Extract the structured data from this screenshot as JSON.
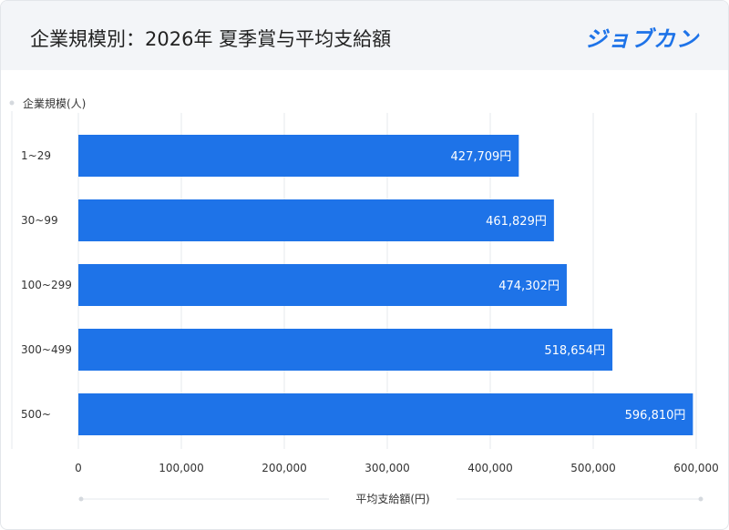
{
  "header": {
    "title": "企業規模別：2026年 夏季賞与平均支給額",
    "logo": "ジョブカン"
  },
  "colors": {
    "bar": "#1e73e8",
    "grid": "#e6e9ed",
    "header_bg": "#f3f5f8",
    "logo": "#1e73e8"
  },
  "chart_data": {
    "type": "bar",
    "orientation": "horizontal",
    "ylabel": "企業規模(人)",
    "xlabel": "平均支給額(円)",
    "categories": [
      "1~29",
      "30~99",
      "100~299",
      "300~499",
      "500~"
    ],
    "values": [
      427709,
      461829,
      474302,
      518654,
      596810
    ],
    "data_labels": [
      "427,709円",
      "461,829円",
      "474,302円",
      "518,654円",
      "596,810円"
    ],
    "xlim": [
      0,
      600000
    ],
    "xticks": [
      0,
      100000,
      200000,
      300000,
      400000,
      500000,
      600000
    ],
    "xtick_labels": [
      "0",
      "100,000",
      "200,000",
      "300,000",
      "400,000",
      "500,000",
      "600,000"
    ],
    "grid": true
  }
}
